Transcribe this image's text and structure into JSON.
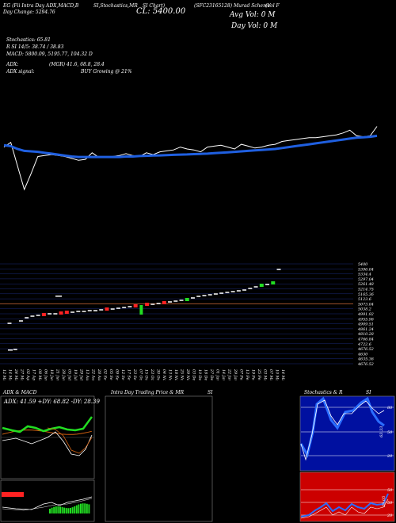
{
  "header": {
    "line1": "EG (Fii Intra Day ADX,MACD,B",
    "line1b": "SI,Stochastics,MR",
    "line1c": "SI Chart)",
    "line1d": "(SFC23165128) Murad Scheme",
    "tag": "(Vol F",
    "cl_label": "CL: 5400.00",
    "avg_vol": "Avg Vol: 0   M",
    "day_vol": "Day Vol: 0   M",
    "change": "Day Change: 5294.76"
  },
  "indicators": {
    "stochastics": "Stochastics: 65.81",
    "rsi": "R       SI 14/5: 38.74  / 38.83",
    "macd": "MACD: 5800.09, 5195.77, 104.32  D",
    "adx": "ADX:",
    "adx_val": "(MGR) 41.6, 68.8, 28.4",
    "adx_signal": "ADX  signal:",
    "buy_signal": "BUY Growing @ 21%"
  },
  "chart_data": [
    {
      "type": "line",
      "x": [
        0,
        1,
        2,
        3,
        4,
        5,
        6,
        7,
        8,
        9,
        10,
        11,
        12,
        13,
        14,
        15,
        16,
        17,
        18,
        19,
        20,
        21,
        22,
        23,
        24,
        25,
        26,
        27,
        28,
        29,
        30,
        31,
        32,
        33,
        34,
        35,
        36,
        37,
        38,
        39,
        40,
        41,
        42,
        43,
        44,
        45,
        46,
        47,
        48,
        49,
        50,
        51,
        52,
        53,
        54,
        55
      ],
      "series": [
        {
          "values": [
            4900,
            4950,
            4700,
            4450,
            4620,
            4800,
            4810,
            4820,
            4810,
            4800,
            4780,
            4760,
            4770,
            4840,
            4790,
            4800,
            4800,
            4810,
            4830,
            4810,
            4800,
            4840,
            4820,
            4850,
            4860,
            4870,
            4900,
            4880,
            4870,
            4850,
            4900,
            4910,
            4920,
            4900,
            4880,
            4930,
            4910,
            4890,
            4900,
            4920,
            4930,
            4960,
            4970,
            4980,
            4990,
            5000,
            5000,
            5010,
            5020,
            5030,
            5050,
            5080,
            5020,
            5010,
            5020,
            5120
          ]
        },
        {
          "values": [
            4920,
            4910,
            4880,
            4860,
            4855,
            4850,
            4840,
            4830,
            4820,
            4810,
            4800,
            4795,
            4795,
            4795,
            4795,
            4795,
            4795,
            4795,
            4800,
            4800,
            4805,
            4808,
            4810,
            4812,
            4815,
            4818,
            4820,
            4822,
            4825,
            4828,
            4830,
            4835,
            4840,
            4845,
            4850,
            4855,
            4860,
            4865,
            4870,
            4875,
            4880,
            4890,
            4900,
            4910,
            4920,
            4930,
            4940,
            4950,
            4960,
            4970,
            4980,
            4990,
            5000,
            5005,
            5010,
            5020
          ]
        }
      ]
    },
    {
      "type": "candlestick",
      "ylabels": [
        "5400",
        "5396.04",
        "5334.4",
        "5297.04",
        "5261.48",
        "5214.75",
        "5165.36",
        "5123.6",
        "5073.04",
        "5038.2",
        "4991.92",
        "4955.96",
        "4909.51",
        "4861.24",
        "4810.28",
        "4766.84",
        "4722.6",
        "4676.52",
        "4630",
        "4635.36",
        "4676.52"
      ],
      "dates": [
        "12 Mar",
        "14 Mar",
        "24 Mar",
        "27 Mar",
        "02 Apr",
        "17 Apr",
        "08 May",
        "06 Jun",
        "18 Jun",
        "21 Jun",
        "28 Jun",
        "05 Jul",
        "19 Jul",
        "29 Jul",
        "13 Aug",
        "22 Aug",
        "28 Aug",
        "02 Sep",
        "05 Sep",
        "09 Sep",
        "12 Sep",
        "17 Sep",
        "23 Sep",
        "07 Oct",
        "15 Oct",
        "23 Oct",
        "30 Oct",
        "04 Nov",
        "13 Nov",
        "18 Nov",
        "25 Nov",
        "29 Nov",
        "03 Dec",
        "10 Dec",
        "18 Dec",
        "27 Dec",
        "01 Jan",
        "14 Jan",
        "22 Jan",
        "29 Jan",
        "07 Feb",
        "13 Feb",
        "19 Feb",
        "25 Feb",
        "03 Mar",
        "07 Mar",
        "10 Mar",
        "14 Mar"
      ]
    }
  ],
  "panels": {
    "adx_title": "ADX  & MACD",
    "adx_reading": "ADX: 41.59  +DY: 68.82  -DY: 28.39",
    "mrsi_title": "Intra  Day Trading Price  & MR",
    "mrsi_suffix": "SI",
    "stoch_title": "Stochastics & R",
    "stoch_suffix": "SI",
    "stoch_val": "63.33",
    "rsi_val": "29.05",
    "ticks_stoch": [
      "80",
      "50",
      "20"
    ],
    "ticks_rsi": [
      "50",
      "50",
      "20"
    ]
  },
  "colors": {
    "blue": "#1f5fe0",
    "green": "#22dd22",
    "red": "#ff2222",
    "darkred": "#aa0000",
    "orange": "#d06010",
    "grid": "#1a2a7a"
  }
}
